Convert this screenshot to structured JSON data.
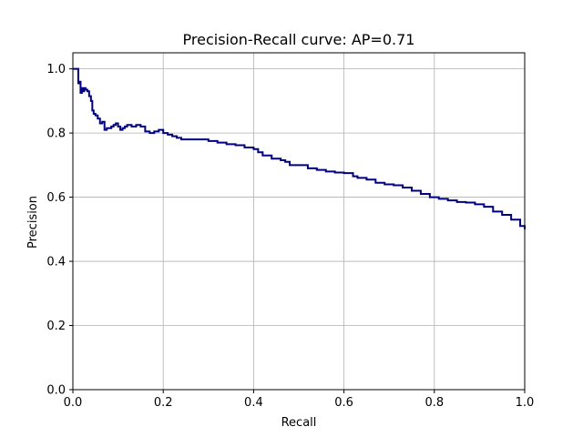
{
  "chart_data": {
    "type": "line",
    "title": "Precision-Recall curve: AP=0.71",
    "xlabel": "Recall",
    "ylabel": "Precision",
    "xlim": [
      0,
      1.0
    ],
    "ylim": [
      0,
      1.05
    ],
    "grid": true,
    "x_ticks": [
      0.0,
      0.2,
      0.4,
      0.6,
      0.8,
      1.0
    ],
    "y_ticks": [
      0.0,
      0.2,
      0.4,
      0.6,
      0.8,
      1.0
    ],
    "x_tick_labels": [
      "0.0",
      "0.2",
      "0.4",
      "0.6",
      "0.8",
      "1.0"
    ],
    "y_tick_labels": [
      "0.0",
      "0.2",
      "0.4",
      "0.6",
      "0.8",
      "1.0"
    ],
    "colors": {
      "line": "#000080",
      "grid": "#b0b0b0",
      "axes": "#000000"
    },
    "series": [
      {
        "style": "step",
        "x": [
          0.0,
          0.012,
          0.012,
          0.015,
          0.017,
          0.02,
          0.022,
          0.025,
          0.028,
          0.032,
          0.036,
          0.04,
          0.043,
          0.046,
          0.05,
          0.055,
          0.06,
          0.065,
          0.07,
          0.075,
          0.08,
          0.085,
          0.09,
          0.095,
          0.1,
          0.105,
          0.11,
          0.115,
          0.12,
          0.13,
          0.14,
          0.15,
          0.16,
          0.17,
          0.18,
          0.19,
          0.2,
          0.21,
          0.22,
          0.23,
          0.24,
          0.26,
          0.28,
          0.3,
          0.32,
          0.34,
          0.36,
          0.38,
          0.4,
          0.41,
          0.42,
          0.44,
          0.46,
          0.47,
          0.48,
          0.5,
          0.52,
          0.54,
          0.56,
          0.58,
          0.6,
          0.62,
          0.63,
          0.65,
          0.67,
          0.69,
          0.71,
          0.73,
          0.75,
          0.77,
          0.79,
          0.81,
          0.83,
          0.85,
          0.87,
          0.89,
          0.91,
          0.93,
          0.95,
          0.97,
          0.99,
          1.0
        ],
        "y": [
          1.0,
          1.0,
          0.955,
          0.96,
          0.925,
          0.94,
          0.93,
          0.94,
          0.935,
          0.93,
          0.915,
          0.9,
          0.87,
          0.86,
          0.855,
          0.845,
          0.83,
          0.835,
          0.81,
          0.815,
          0.815,
          0.82,
          0.825,
          0.83,
          0.82,
          0.81,
          0.815,
          0.82,
          0.825,
          0.82,
          0.825,
          0.82,
          0.805,
          0.8,
          0.805,
          0.81,
          0.8,
          0.795,
          0.79,
          0.785,
          0.78,
          0.78,
          0.78,
          0.775,
          0.77,
          0.765,
          0.762,
          0.755,
          0.75,
          0.74,
          0.73,
          0.72,
          0.715,
          0.71,
          0.7,
          0.7,
          0.69,
          0.685,
          0.68,
          0.677,
          0.675,
          0.665,
          0.66,
          0.655,
          0.645,
          0.64,
          0.637,
          0.63,
          0.62,
          0.61,
          0.6,
          0.595,
          0.59,
          0.585,
          0.583,
          0.578,
          0.57,
          0.555,
          0.545,
          0.53,
          0.51,
          0.5
        ]
      }
    ]
  }
}
